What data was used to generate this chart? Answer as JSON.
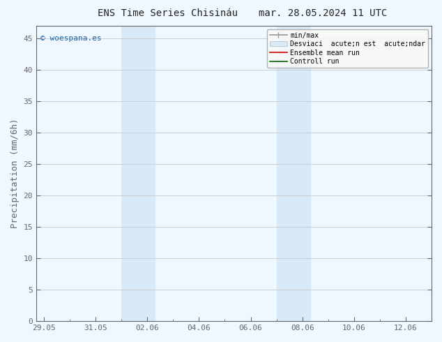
{
  "title_left": "ENS Time Series Chisináu",
  "title_right": "mar. 28.05.2024 11 UTC",
  "ylabel": "Precipitation (mm/6h)",
  "watermark": "© woespana.es",
  "x_tick_labels": [
    "29.05",
    "31.05",
    "02.06",
    "04.06",
    "06.06",
    "08.06",
    "10.06",
    "12.06"
  ],
  "x_tick_positions": [
    0,
    2,
    4,
    6,
    8,
    10,
    12,
    14
  ],
  "xlim": [
    -0.3,
    15.0
  ],
  "ylim": [
    0,
    47
  ],
  "yticks": [
    0,
    5,
    10,
    15,
    20,
    25,
    30,
    35,
    40,
    45
  ],
  "shaded_regions": [
    {
      "x_start": 3.0,
      "x_end": 4.3
    },
    {
      "x_start": 9.0,
      "x_end": 10.3
    }
  ],
  "shaded_color": "#d8eaf8",
  "background_color": "#f0f8ff",
  "plot_bg_color": "#f0f8ff",
  "grid_color": "#c8c8c8",
  "spine_color": "#666666",
  "title_fontsize": 10,
  "label_fontsize": 9,
  "tick_fontsize": 8,
  "legend_labels": [
    "min/max",
    "Desviaci  acute;n est  acute;ndar",
    "Ensemble mean run",
    "Controll run"
  ],
  "legend_colors_line": [
    "#888888",
    "#ccddee",
    "#cc0000",
    "#006600"
  ],
  "watermark_color": "#1a5fa8"
}
